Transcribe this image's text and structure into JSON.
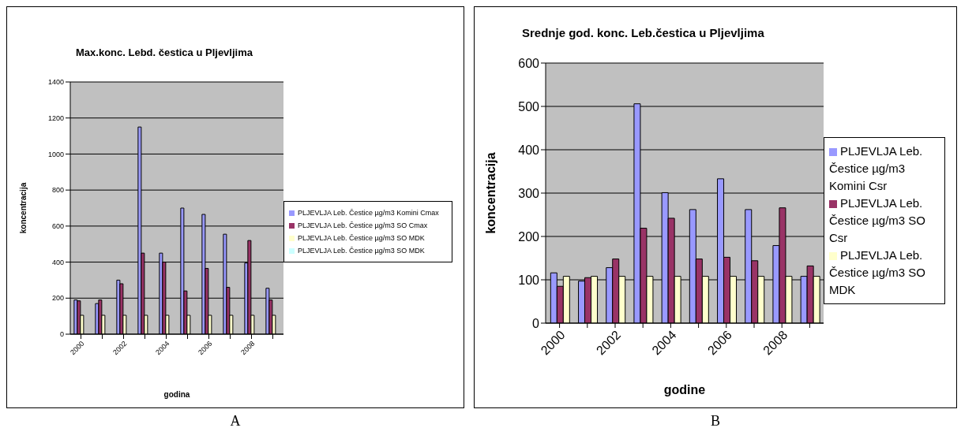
{
  "chart_data": [
    {
      "type": "bar",
      "title": "Max.konc. Lebd. čestica u Pljevljima",
      "xlabel": "godina",
      "ylabel": "koncentracija",
      "annotations": [
        "A"
      ],
      "categories": [
        "2000",
        null,
        "2002",
        null,
        "2004",
        null,
        "2006",
        null,
        "2008",
        null
      ],
      "series": [
        {
          "name": "PLJEVLJA Leb. Čestice µg/m3 Komini Cmax",
          "color": "#9999ff",
          "values": [
            190,
            170,
            300,
            1150,
            450,
            700,
            665,
            555,
            395,
            255
          ]
        },
        {
          "name": "PLJEVLJA Leb. Čestice µg/m3 SO Cmax",
          "color": "#993366",
          "values": [
            185,
            190,
            280,
            450,
            400,
            240,
            365,
            260,
            520,
            190
          ]
        },
        {
          "name": "PLJEVLJA Leb. Čestice µg/m3 SO MDK",
          "color": "#ffffcc",
          "values": [
            105,
            105,
            105,
            105,
            105,
            105,
            105,
            105,
            105,
            105
          ]
        },
        {
          "name": "PLJEVLJA Leb. Čestice µg/m3 SO MDK",
          "color": "#ccffff",
          "values": [
            null,
            null,
            null,
            null,
            null,
            null,
            null,
            null,
            null,
            null
          ]
        }
      ],
      "ylim": [
        0,
        1400
      ],
      "yticks": [
        0,
        200,
        400,
        600,
        800,
        1000,
        1200,
        1400
      ],
      "grid": "y",
      "legend": "right"
    },
    {
      "type": "bar",
      "title": "Srednje god. konc. Leb.čestica u Pljevljima",
      "xlabel": "godine",
      "ylabel": "koncentracija",
      "annotations": [
        "B"
      ],
      "categories": [
        "2000",
        null,
        "2002",
        null,
        "2004",
        null,
        "2006",
        null,
        "2008",
        null
      ],
      "series": [
        {
          "name": "PLJEVLJA Leb. Čestice µg/m3 Komini Csr",
          "color": "#9999ff",
          "values": [
            116,
            97,
            128,
            506,
            301,
            262,
            333,
            262,
            179,
            108
          ]
        },
        {
          "name": "PLJEVLJA Leb. Čestice µg/m3 SO Csr",
          "color": "#993366",
          "values": [
            85,
            105,
            148,
            219,
            242,
            148,
            152,
            144,
            266,
            132
          ]
        },
        {
          "name": "PLJEVLJA Leb. Čestice µg/m3 SO MDK",
          "color": "#ffffcc",
          "values": [
            108,
            108,
            108,
            108,
            108,
            108,
            108,
            108,
            108,
            108
          ]
        }
      ],
      "ylim": [
        0,
        600
      ],
      "yticks": [
        0,
        100,
        200,
        300,
        400,
        500,
        600
      ],
      "grid": "y",
      "legend": "right"
    }
  ]
}
